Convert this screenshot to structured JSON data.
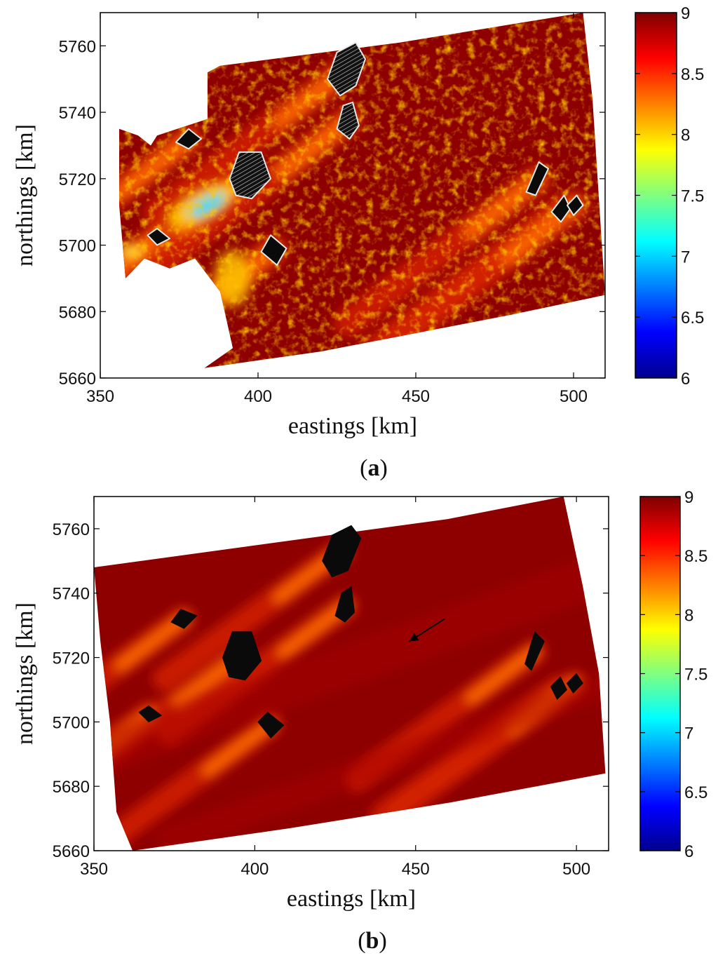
{
  "chart_data": [
    {
      "type": "heatmap",
      "panel_label": "(a)",
      "panel_letter": "a",
      "xlabel": "eastings [km]",
      "ylabel": "northings [km]",
      "xlim": [
        350,
        510
      ],
      "ylim": [
        5660,
        5770
      ],
      "xticks": [
        350,
        400,
        450,
        500
      ],
      "yticks": [
        5660,
        5680,
        5700,
        5720,
        5740,
        5760
      ],
      "colorbar": {
        "min": 6,
        "max": 9,
        "ticks": [
          6,
          6.5,
          7,
          7.5,
          8,
          8.5,
          9
        ],
        "colormap": "jet"
      },
      "style": "observed-texture",
      "domain_polygon": [
        [
          356,
          5735
        ],
        [
          362,
          5733
        ],
        [
          366,
          5730
        ],
        [
          368,
          5733
        ],
        [
          384,
          5738
        ],
        [
          384,
          5752
        ],
        [
          388,
          5754
        ],
        [
          445,
          5761
        ],
        [
          503,
          5770
        ],
        [
          506,
          5744
        ],
        [
          510,
          5685
        ],
        [
          480,
          5679
        ],
        [
          420,
          5668
        ],
        [
          383,
          5663
        ],
        [
          392,
          5669
        ],
        [
          388,
          5686
        ],
        [
          380,
          5696
        ],
        [
          372,
          5693
        ],
        [
          364,
          5696
        ],
        [
          358,
          5690
        ],
        [
          356,
          5712
        ]
      ],
      "wind_farms": [
        {
          "polygon": [
            [
              422,
              5750
            ],
            [
              425,
              5758
            ],
            [
              431,
              5761
            ],
            [
              434,
              5756
            ],
            [
              431,
              5748
            ],
            [
              426,
              5745
            ]
          ],
          "fill": "hatched"
        },
        {
          "polygon": [
            [
              425,
              5735
            ],
            [
              427,
              5742
            ],
            [
              430,
              5743
            ],
            [
              432,
              5736
            ],
            [
              429,
              5732
            ]
          ],
          "fill": "hatched"
        },
        {
          "polygon": [
            [
              374,
              5731
            ],
            [
              378,
              5735
            ],
            [
              382,
              5732
            ],
            [
              378,
              5729
            ]
          ],
          "fill": "black"
        },
        {
          "polygon": [
            [
              391,
              5720
            ],
            [
              394,
              5728
            ],
            [
              401,
              5728
            ],
            [
              404,
              5720
            ],
            [
              398,
              5714
            ],
            [
              393,
              5715
            ]
          ],
          "fill": "hatched"
        },
        {
          "polygon": [
            [
              365,
              5703
            ],
            [
              368,
              5705
            ],
            [
              372,
              5702
            ],
            [
              368,
              5700
            ]
          ],
          "fill": "black"
        },
        {
          "polygon": [
            [
              401,
              5698
            ],
            [
              404,
              5703
            ],
            [
              409,
              5699
            ],
            [
              406,
              5694
            ]
          ],
          "fill": "black"
        },
        {
          "polygon": [
            [
              485,
              5716
            ],
            [
              489,
              5725
            ],
            [
              492,
              5723
            ],
            [
              488,
              5715
            ]
          ],
          "fill": "black"
        },
        {
          "polygon": [
            [
              493,
              5710
            ],
            [
              497,
              5715
            ],
            [
              499,
              5711
            ],
            [
              496,
              5707
            ]
          ],
          "fill": "black"
        },
        {
          "polygon": [
            [
              498,
              5712
            ],
            [
              501,
              5715
            ],
            [
              503,
              5712
            ],
            [
              500,
              5709
            ]
          ],
          "fill": "black"
        }
      ]
    },
    {
      "type": "heatmap",
      "panel_label": "(b)",
      "panel_letter": "b",
      "xlabel": "eastings [km]",
      "ylabel": "northings [km]",
      "xlim": [
        350,
        510
      ],
      "ylim": [
        5660,
        5770
      ],
      "xticks": [
        350,
        400,
        450,
        500
      ],
      "yticks": [
        5660,
        5680,
        5700,
        5720,
        5740,
        5760
      ],
      "colorbar": {
        "min": 6,
        "max": 9,
        "ticks": [
          6,
          6.5,
          7,
          7.5,
          8,
          8.5,
          9
        ],
        "colormap": "jet"
      },
      "style": "modelled-smooth",
      "arrow": {
        "from": [
          459,
          5732
        ],
        "to": [
          448,
          5725
        ]
      },
      "domain_polygon": [
        [
          350,
          5748
        ],
        [
          460,
          5763
        ],
        [
          496,
          5770
        ],
        [
          502,
          5742
        ],
        [
          507,
          5715
        ],
        [
          509,
          5684
        ],
        [
          461,
          5675
        ],
        [
          411,
          5667
        ],
        [
          362,
          5660
        ],
        [
          357,
          5672
        ],
        [
          355,
          5700
        ],
        [
          352,
          5725
        ]
      ],
      "wind_farms": [
        {
          "polygon": [
            [
              421,
              5750
            ],
            [
              424,
              5758
            ],
            [
              430,
              5761
            ],
            [
              433,
              5757
            ],
            [
              429,
              5747
            ],
            [
              424,
              5745
            ]
          ],
          "fill": "black"
        },
        {
          "polygon": [
            [
              425,
              5733
            ],
            [
              427,
              5740
            ],
            [
              430,
              5742
            ],
            [
              431,
              5734
            ],
            [
              428,
              5731
            ]
          ],
          "fill": "black"
        },
        {
          "polygon": [
            [
              374,
              5731
            ],
            [
              377,
              5735
            ],
            [
              382,
              5733
            ],
            [
              378,
              5729
            ]
          ],
          "fill": "black"
        },
        {
          "polygon": [
            [
              390,
              5720
            ],
            [
              393,
              5728
            ],
            [
              399,
              5728
            ],
            [
              402,
              5719
            ],
            [
              397,
              5713
            ],
            [
              392,
              5714
            ]
          ],
          "fill": "black"
        },
        {
          "polygon": [
            [
              364,
              5703
            ],
            [
              367,
              5705
            ],
            [
              371,
              5702
            ],
            [
              367,
              5700
            ]
          ],
          "fill": "black"
        },
        {
          "polygon": [
            [
              401,
              5700
            ],
            [
              404,
              5703
            ],
            [
              409,
              5699
            ],
            [
              405,
              5695
            ]
          ],
          "fill": "black"
        },
        {
          "polygon": [
            [
              484,
              5718
            ],
            [
              487,
              5728
            ],
            [
              490,
              5725
            ],
            [
              486,
              5716
            ]
          ],
          "fill": "black"
        },
        {
          "polygon": [
            [
              492,
              5711
            ],
            [
              495,
              5714
            ],
            [
              497,
              5710
            ],
            [
              494,
              5707
            ]
          ],
          "fill": "black"
        },
        {
          "polygon": [
            [
              497,
              5712
            ],
            [
              500,
              5715
            ],
            [
              502,
              5712
            ],
            [
              499,
              5709
            ]
          ],
          "fill": "black"
        }
      ]
    }
  ]
}
